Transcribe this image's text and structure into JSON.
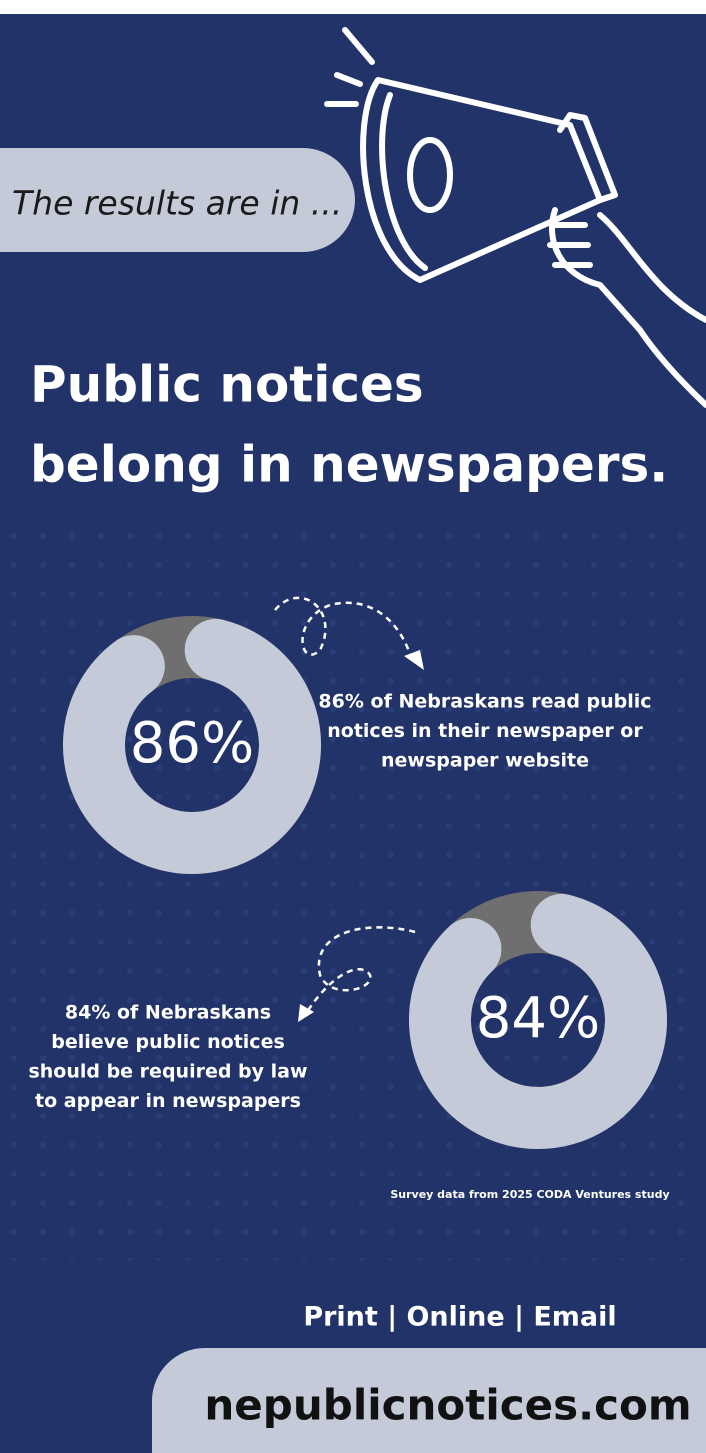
{
  "tagline": "The results are in ...",
  "headline": [
    "Public notices",
    "belong in newspapers."
  ],
  "stats": [
    {
      "value": 86,
      "value_label": "86%",
      "text": [
        "86% of Nebraskans read public",
        "notices in their newspaper or",
        "newspaper website"
      ]
    },
    {
      "value": 84,
      "value_label": "84%",
      "text": [
        "84% of Nebraskans",
        "believe public notices",
        "should be required by law",
        "to appear in newspapers"
      ]
    }
  ],
  "source": "Survey data from 2025 CODA Ventures study",
  "channels": "Print | Online | Email",
  "url": "nepublicnotices.com"
}
